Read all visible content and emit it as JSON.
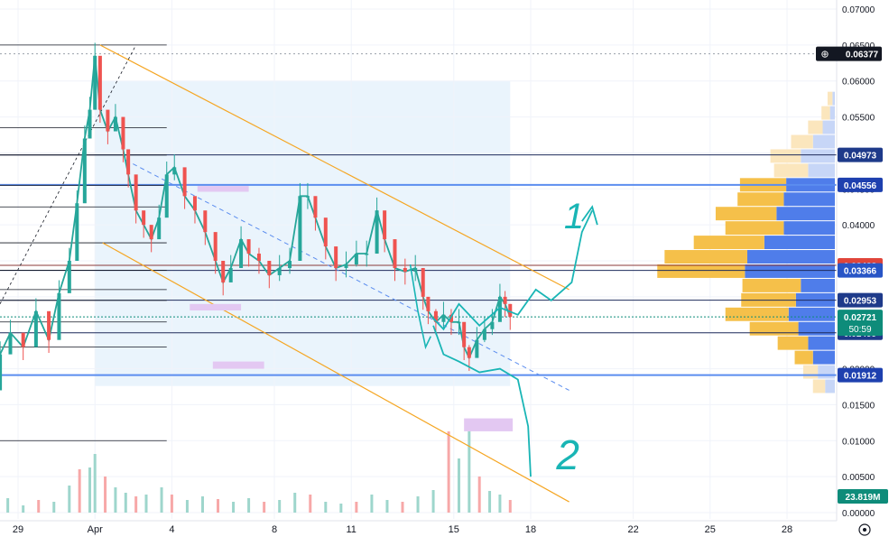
{
  "chart_data": {
    "type": "candlestick",
    "title": "",
    "xlabel": "",
    "ylabel": "",
    "ylim": [
      0.0,
      0.07
    ],
    "y_ticks": [
      "0.07000",
      "0.06500",
      "0.06000",
      "0.05500",
      "0.05000",
      "0.04500",
      "0.04000",
      "0.03500",
      "0.03000",
      "0.02500",
      "0.02000",
      "0.01500",
      "0.01000",
      "0.00500",
      "0.00000"
    ],
    "x_ticks": [
      "29",
      "Apr",
      "4",
      "8",
      "11",
      "15",
      "18",
      "22",
      "25",
      "28"
    ],
    "x_tick_days": [
      29,
      32,
      35,
      39,
      42,
      46,
      49,
      53,
      56,
      59
    ],
    "price_series": [
      {
        "d": 28.0,
        "v": 0.017
      },
      {
        "d": 28.3,
        "v": 0.022
      },
      {
        "d": 28.7,
        "v": 0.025
      },
      {
        "d": 29.2,
        "v": 0.023
      },
      {
        "d": 29.7,
        "v": 0.028
      },
      {
        "d": 30.2,
        "v": 0.024
      },
      {
        "d": 30.6,
        "v": 0.0305
      },
      {
        "d": 31.0,
        "v": 0.035
      },
      {
        "d": 31.3,
        "v": 0.043
      },
      {
        "d": 31.6,
        "v": 0.052
      },
      {
        "d": 31.8,
        "v": 0.056
      },
      {
        "d": 32.0,
        "v": 0.0635
      },
      {
        "d": 32.2,
        "v": 0.056
      },
      {
        "d": 32.5,
        "v": 0.053
      },
      {
        "d": 32.8,
        "v": 0.055
      },
      {
        "d": 33.1,
        "v": 0.0505
      },
      {
        "d": 33.3,
        "v": 0.047
      },
      {
        "d": 33.6,
        "v": 0.042
      },
      {
        "d": 33.9,
        "v": 0.04
      },
      {
        "d": 34.2,
        "v": 0.038
      },
      {
        "d": 34.5,
        "v": 0.041
      },
      {
        "d": 34.8,
        "v": 0.047
      },
      {
        "d": 35.1,
        "v": 0.048
      },
      {
        "d": 35.5,
        "v": 0.044
      },
      {
        "d": 35.9,
        "v": 0.042
      },
      {
        "d": 36.3,
        "v": 0.039
      },
      {
        "d": 36.7,
        "v": 0.035
      },
      {
        "d": 37.0,
        "v": 0.032
      },
      {
        "d": 37.3,
        "v": 0.034
      },
      {
        "d": 37.7,
        "v": 0.038
      },
      {
        "d": 38.0,
        "v": 0.036
      },
      {
        "d": 38.4,
        "v": 0.035
      },
      {
        "d": 38.8,
        "v": 0.033
      },
      {
        "d": 39.2,
        "v": 0.034
      },
      {
        "d": 39.6,
        "v": 0.035
      },
      {
        "d": 40.0,
        "v": 0.044
      },
      {
        "d": 40.3,
        "v": 0.044
      },
      {
        "d": 40.6,
        "v": 0.041
      },
      {
        "d": 41.0,
        "v": 0.037
      },
      {
        "d": 41.4,
        "v": 0.034
      },
      {
        "d": 41.8,
        "v": 0.0345
      },
      {
        "d": 42.2,
        "v": 0.036
      },
      {
        "d": 42.6,
        "v": 0.036
      },
      {
        "d": 43.0,
        "v": 0.042
      },
      {
        "d": 43.3,
        "v": 0.038
      },
      {
        "d": 43.7,
        "v": 0.034
      },
      {
        "d": 44.1,
        "v": 0.0335
      },
      {
        "d": 44.5,
        "v": 0.034
      },
      {
        "d": 44.8,
        "v": 0.03
      },
      {
        "d": 45.0,
        "v": 0.028
      },
      {
        "d": 45.3,
        "v": 0.0265
      },
      {
        "d": 45.6,
        "v": 0.0275
      },
      {
        "d": 45.9,
        "v": 0.0265
      },
      {
        "d": 46.2,
        "v": 0.0265
      },
      {
        "d": 46.4,
        "v": 0.023
      },
      {
        "d": 46.6,
        "v": 0.0215
      },
      {
        "d": 46.9,
        "v": 0.024
      },
      {
        "d": 47.2,
        "v": 0.0255
      },
      {
        "d": 47.5,
        "v": 0.0265
      },
      {
        "d": 47.8,
        "v": 0.03
      },
      {
        "d": 48.0,
        "v": 0.029
      },
      {
        "d": 48.2,
        "v": 0.0272
      }
    ],
    "volume_series": [
      {
        "d": 28.0,
        "v": 10
      },
      {
        "d": 28.6,
        "v": 16
      },
      {
        "d": 29.2,
        "v": 8
      },
      {
        "d": 29.8,
        "v": 14
      },
      {
        "d": 30.4,
        "v": 12
      },
      {
        "d": 31.0,
        "v": 30
      },
      {
        "d": 31.4,
        "v": 48
      },
      {
        "d": 31.8,
        "v": 50
      },
      {
        "d": 32.0,
        "v": 65
      },
      {
        "d": 32.4,
        "v": 40
      },
      {
        "d": 32.8,
        "v": 28
      },
      {
        "d": 33.2,
        "v": 22
      },
      {
        "d": 33.6,
        "v": 18
      },
      {
        "d": 34.0,
        "v": 20
      },
      {
        "d": 34.6,
        "v": 28
      },
      {
        "d": 35.0,
        "v": 20
      },
      {
        "d": 35.6,
        "v": 14
      },
      {
        "d": 36.2,
        "v": 18
      },
      {
        "d": 36.8,
        "v": 15
      },
      {
        "d": 37.4,
        "v": 12
      },
      {
        "d": 38.0,
        "v": 16
      },
      {
        "d": 38.6,
        "v": 12
      },
      {
        "d": 39.2,
        "v": 14
      },
      {
        "d": 39.8,
        "v": 22
      },
      {
        "d": 40.4,
        "v": 20
      },
      {
        "d": 41.0,
        "v": 12
      },
      {
        "d": 41.6,
        "v": 10
      },
      {
        "d": 42.2,
        "v": 12
      },
      {
        "d": 42.8,
        "v": 20
      },
      {
        "d": 43.4,
        "v": 14
      },
      {
        "d": 44.0,
        "v": 12
      },
      {
        "d": 44.6,
        "v": 18
      },
      {
        "d": 45.2,
        "v": 25
      },
      {
        "d": 45.8,
        "v": 90
      },
      {
        "d": 46.2,
        "v": 60
      },
      {
        "d": 46.6,
        "v": 100
      },
      {
        "d": 47.0,
        "v": 40
      },
      {
        "d": 47.4,
        "v": 24
      },
      {
        "d": 47.8,
        "v": 20
      },
      {
        "d": 48.2,
        "v": 14
      }
    ],
    "horizontal_levels": [
      {
        "label": "0.04973",
        "value": 0.04973,
        "color": "#1e3a8a",
        "line": "#1e2b5b"
      },
      {
        "label": "0.04556",
        "value": 0.04556,
        "color": "#1e40af",
        "line": "#5b8def"
      },
      {
        "label": "0.03438",
        "value": 0.03438,
        "color": "#e0453a",
        "line": "#8b3a3a"
      },
      {
        "label": "0.03366",
        "value": 0.03366,
        "color": "#2855c6",
        "line": "#1e2b5b"
      },
      {
        "label": "0.02953",
        "value": 0.02953,
        "color": "#1e3a8a",
        "line": "#1e2b5b"
      },
      {
        "label": "0.02499",
        "value": 0.02499,
        "color": "#1e3a8a",
        "line": "#1e2b5b"
      },
      {
        "label": "0.01912",
        "value": 0.01912,
        "color": "#1e40af",
        "line": "#5b8def"
      }
    ],
    "current_price": {
      "label": "0.02721",
      "countdown": "50:59",
      "color": "#0e8c7a"
    },
    "ath_marker": {
      "label": "0.06377",
      "value": 0.06377,
      "color": "#131722"
    },
    "volume_label": {
      "label": "23.819M",
      "color": "#0e8c7a"
    },
    "volume_profile": [
      {
        "value": 0.0575,
        "buy": 0.04,
        "sell": 0.02
      },
      {
        "value": 0.0555,
        "buy": 0.07,
        "sell": 0.04
      },
      {
        "value": 0.0535,
        "buy": 0.12,
        "sell": 0.1
      },
      {
        "value": 0.0515,
        "buy": 0.18,
        "sell": 0.18
      },
      {
        "value": 0.0495,
        "buy": 0.25,
        "sell": 0.28
      },
      {
        "value": 0.0475,
        "buy": 0.28,
        "sell": 0.22
      },
      {
        "value": 0.0455,
        "buy": 0.38,
        "sell": 0.4
      },
      {
        "value": 0.0435,
        "buy": 0.38,
        "sell": 0.42
      },
      {
        "value": 0.0415,
        "buy": 0.5,
        "sell": 0.48
      },
      {
        "value": 0.0395,
        "buy": 0.48,
        "sell": 0.42
      },
      {
        "value": 0.0375,
        "buy": 0.58,
        "sell": 0.58
      },
      {
        "value": 0.0355,
        "buy": 0.68,
        "sell": 0.72
      },
      {
        "value": 0.0335,
        "buy": 0.72,
        "sell": 0.74
      },
      {
        "value": 0.0315,
        "buy": 0.48,
        "sell": 0.28
      },
      {
        "value": 0.0295,
        "buy": 0.45,
        "sell": 0.32
      },
      {
        "value": 0.0275,
        "buy": 0.52,
        "sell": 0.38
      },
      {
        "value": 0.0255,
        "buy": 0.4,
        "sell": 0.3
      },
      {
        "value": 0.0235,
        "buy": 0.25,
        "sell": 0.22
      },
      {
        "value": 0.0215,
        "buy": 0.15,
        "sell": 0.18
      },
      {
        "value": 0.0195,
        "buy": 0.12,
        "sell": 0.14
      },
      {
        "value": 0.0175,
        "buy": 0.1,
        "sell": 0.08
      }
    ],
    "annotations": {
      "scenario_1": "1",
      "scenario_2": "2"
    }
  }
}
